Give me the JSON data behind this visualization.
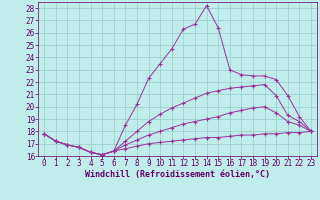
{
  "xlabel": "Windchill (Refroidissement éolien,°C)",
  "background_color": "#c0ecec",
  "line_color": "#993399",
  "xlim": [
    -0.5,
    23.5
  ],
  "ylim": [
    16.0,
    28.5
  ],
  "xticks": [
    0,
    1,
    2,
    3,
    4,
    5,
    6,
    7,
    8,
    9,
    10,
    11,
    12,
    13,
    14,
    15,
    16,
    17,
    18,
    19,
    20,
    21,
    22,
    23
  ],
  "yticks": [
    16,
    17,
    18,
    19,
    20,
    21,
    22,
    23,
    24,
    25,
    26,
    27,
    28
  ],
  "lines": [
    {
      "x": [
        0,
        1,
        2,
        3,
        4,
        5,
        6,
        7,
        8,
        9,
        10,
        11,
        12,
        13,
        14,
        15,
        16,
        17,
        18,
        19,
        20,
        21,
        22,
        23
      ],
      "y": [
        17.8,
        17.2,
        16.9,
        16.7,
        16.3,
        16.1,
        16.4,
        18.5,
        20.2,
        22.3,
        23.5,
        24.7,
        26.3,
        26.7,
        28.2,
        26.4,
        23.0,
        22.6,
        22.5,
        22.5,
        22.2,
        20.9,
        19.2,
        18.0
      ]
    },
    {
      "x": [
        0,
        1,
        2,
        3,
        4,
        5,
        6,
        7,
        8,
        9,
        10,
        11,
        12,
        13,
        14,
        15,
        16,
        17,
        18,
        19,
        20,
        21,
        22,
        23
      ],
      "y": [
        17.8,
        17.2,
        16.9,
        16.7,
        16.3,
        16.1,
        16.4,
        17.2,
        18.0,
        18.8,
        19.4,
        19.9,
        20.3,
        20.7,
        21.1,
        21.3,
        21.5,
        21.6,
        21.7,
        21.8,
        20.9,
        19.3,
        18.8,
        18.0
      ]
    },
    {
      "x": [
        0,
        1,
        2,
        3,
        4,
        5,
        6,
        7,
        8,
        9,
        10,
        11,
        12,
        13,
        14,
        15,
        16,
        17,
        18,
        19,
        20,
        21,
        22,
        23
      ],
      "y": [
        17.8,
        17.2,
        16.9,
        16.7,
        16.3,
        16.1,
        16.4,
        16.9,
        17.3,
        17.7,
        18.0,
        18.3,
        18.6,
        18.8,
        19.0,
        19.2,
        19.5,
        19.7,
        19.9,
        20.0,
        19.5,
        18.8,
        18.5,
        18.0
      ]
    },
    {
      "x": [
        0,
        1,
        2,
        3,
        4,
        5,
        6,
        7,
        8,
        9,
        10,
        11,
        12,
        13,
        14,
        15,
        16,
        17,
        18,
        19,
        20,
        21,
        22,
        23
      ],
      "y": [
        17.8,
        17.2,
        16.9,
        16.7,
        16.3,
        16.1,
        16.4,
        16.6,
        16.8,
        17.0,
        17.1,
        17.2,
        17.3,
        17.4,
        17.5,
        17.5,
        17.6,
        17.7,
        17.7,
        17.8,
        17.8,
        17.9,
        17.9,
        18.0
      ]
    }
  ],
  "grid_color": "#99cccc",
  "tick_color": "#660066",
  "label_color": "#660066",
  "font_size": 5.5,
  "xlabel_fontsize": 6.0,
  "marker": "+"
}
